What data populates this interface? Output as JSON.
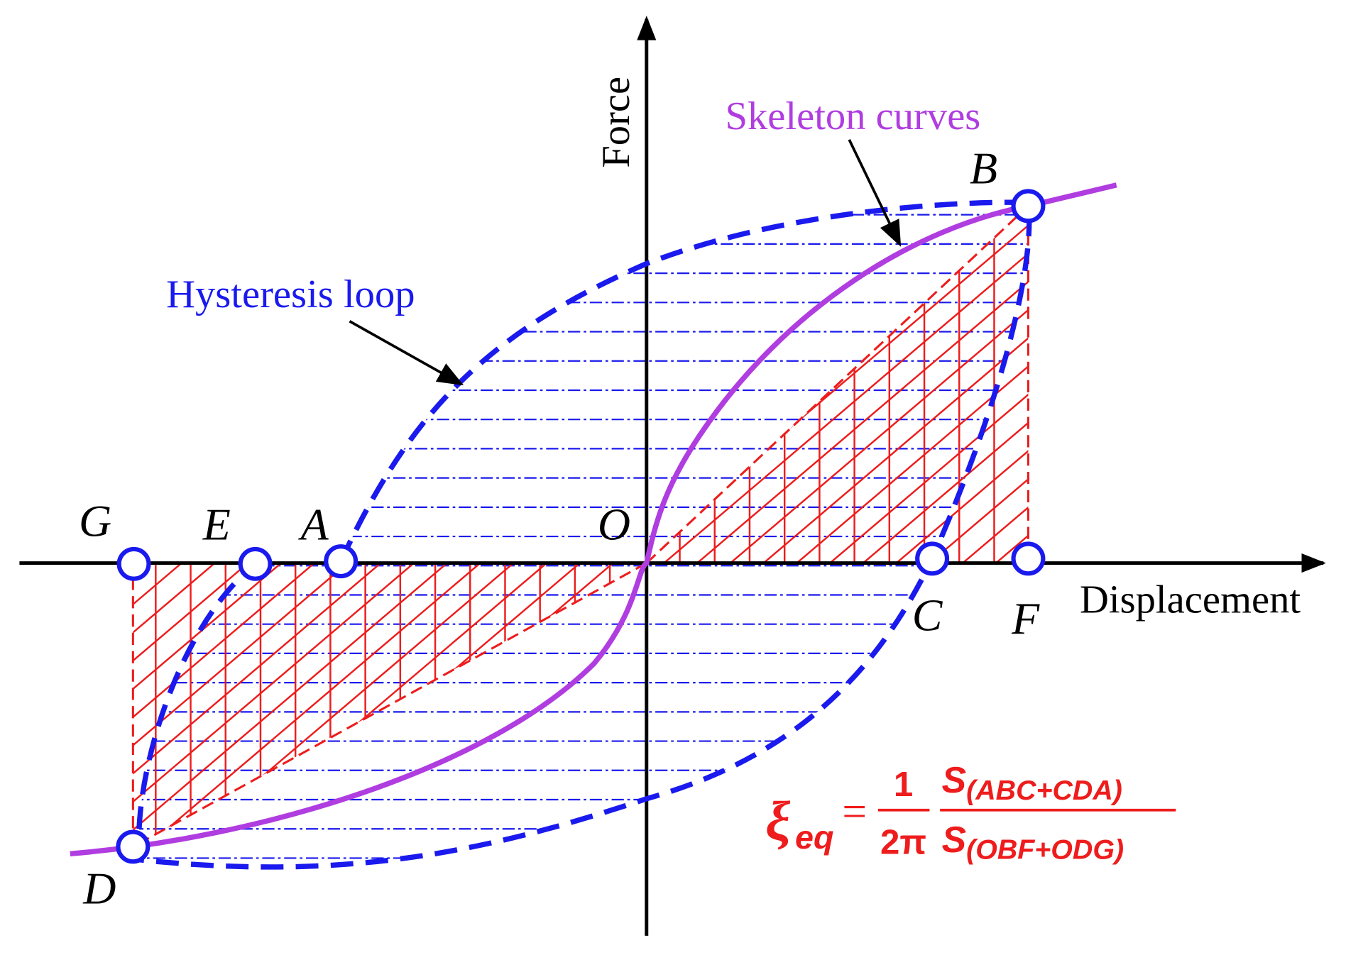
{
  "axes": {
    "y_label": "Force",
    "x_label": "Displacement"
  },
  "annotations": {
    "skeleton": "Skeleton curves",
    "hysteresis": "Hysteresis loop"
  },
  "points": [
    "G",
    "E",
    "A",
    "O",
    "B",
    "C",
    "F",
    "D"
  ],
  "formula": {
    "symbol": "ξ",
    "symbol_subscript": "eq",
    "equals": "=",
    "coef_numerator": "1",
    "coef_denominator": "2π",
    "numerator": "S",
    "numerator_subscript": "(ABC+CDA)",
    "denominator": "S",
    "denominator_subscript": "(OBF+ODG)"
  }
}
